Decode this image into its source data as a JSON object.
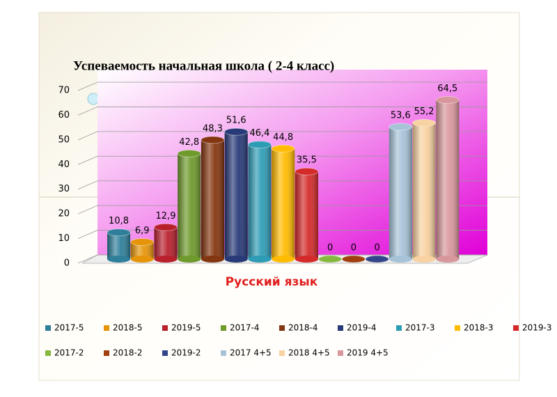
{
  "chart_data": {
    "type": "bar",
    "title": "Успеваемость начальная школа ( 2-4  класс)",
    "categories": [
      "Русский язык"
    ],
    "ylim": [
      0,
      70
    ],
    "yticks": [
      0,
      10,
      20,
      30,
      40,
      50,
      60,
      70
    ],
    "grid": true,
    "series": [
      {
        "name": "2017-5",
        "color": "#2f7f9a",
        "values": [
          10.8
        ],
        "value_labels": [
          "10,8"
        ]
      },
      {
        "name": "2018-5",
        "color": "#e6950a",
        "values": [
          6.9
        ],
        "value_labels": [
          "6,9"
        ]
      },
      {
        "name": "2019-5",
        "color": "#b8202c",
        "values": [
          12.9
        ],
        "value_labels": [
          "12,9"
        ]
      },
      {
        "name": "2017-4",
        "color": "#6f9a2c",
        "values": [
          42.8
        ],
        "value_labels": [
          "42,8"
        ]
      },
      {
        "name": "2018-4",
        "color": "#843610",
        "values": [
          48.3
        ],
        "value_labels": [
          "48,3"
        ]
      },
      {
        "name": "2019-4",
        "color": "#283a78",
        "values": [
          51.6
        ],
        "value_labels": [
          "51,6"
        ]
      },
      {
        "name": "2017-3",
        "color": "#2e9cb5",
        "values": [
          46.4
        ],
        "value_labels": [
          "46,4"
        ]
      },
      {
        "name": "2018-3",
        "color": "#ffbb00",
        "values": [
          44.8
        ],
        "value_labels": [
          "44,8"
        ]
      },
      {
        "name": "2019-3",
        "color": "#d42a2a",
        "values": [
          35.5
        ],
        "value_labels": [
          "35,5"
        ]
      },
      {
        "name": "2017-2",
        "color": "#84b93e",
        "values": [
          0
        ]
      },
      {
        "name": "2018-2",
        "color": "#a0400e",
        "values": [
          0
        ]
      },
      {
        "name": "2019-2",
        "color": "#34468a",
        "values": [
          0
        ]
      },
      {
        "name": "2017 4+5",
        "color": "#a6c3d8",
        "values": [
          53.6
        ],
        "value_labels": [
          "53,6"
        ]
      },
      {
        "name": "2018 4+5",
        "color": "#f8d2a0",
        "values": [
          55.2
        ],
        "value_labels": [
          "55,2"
        ]
      },
      {
        "name": "2019 4+5",
        "color": "#d8979c",
        "values": [
          64.5
        ],
        "value_labels": [
          "64,5"
        ]
      }
    ]
  }
}
